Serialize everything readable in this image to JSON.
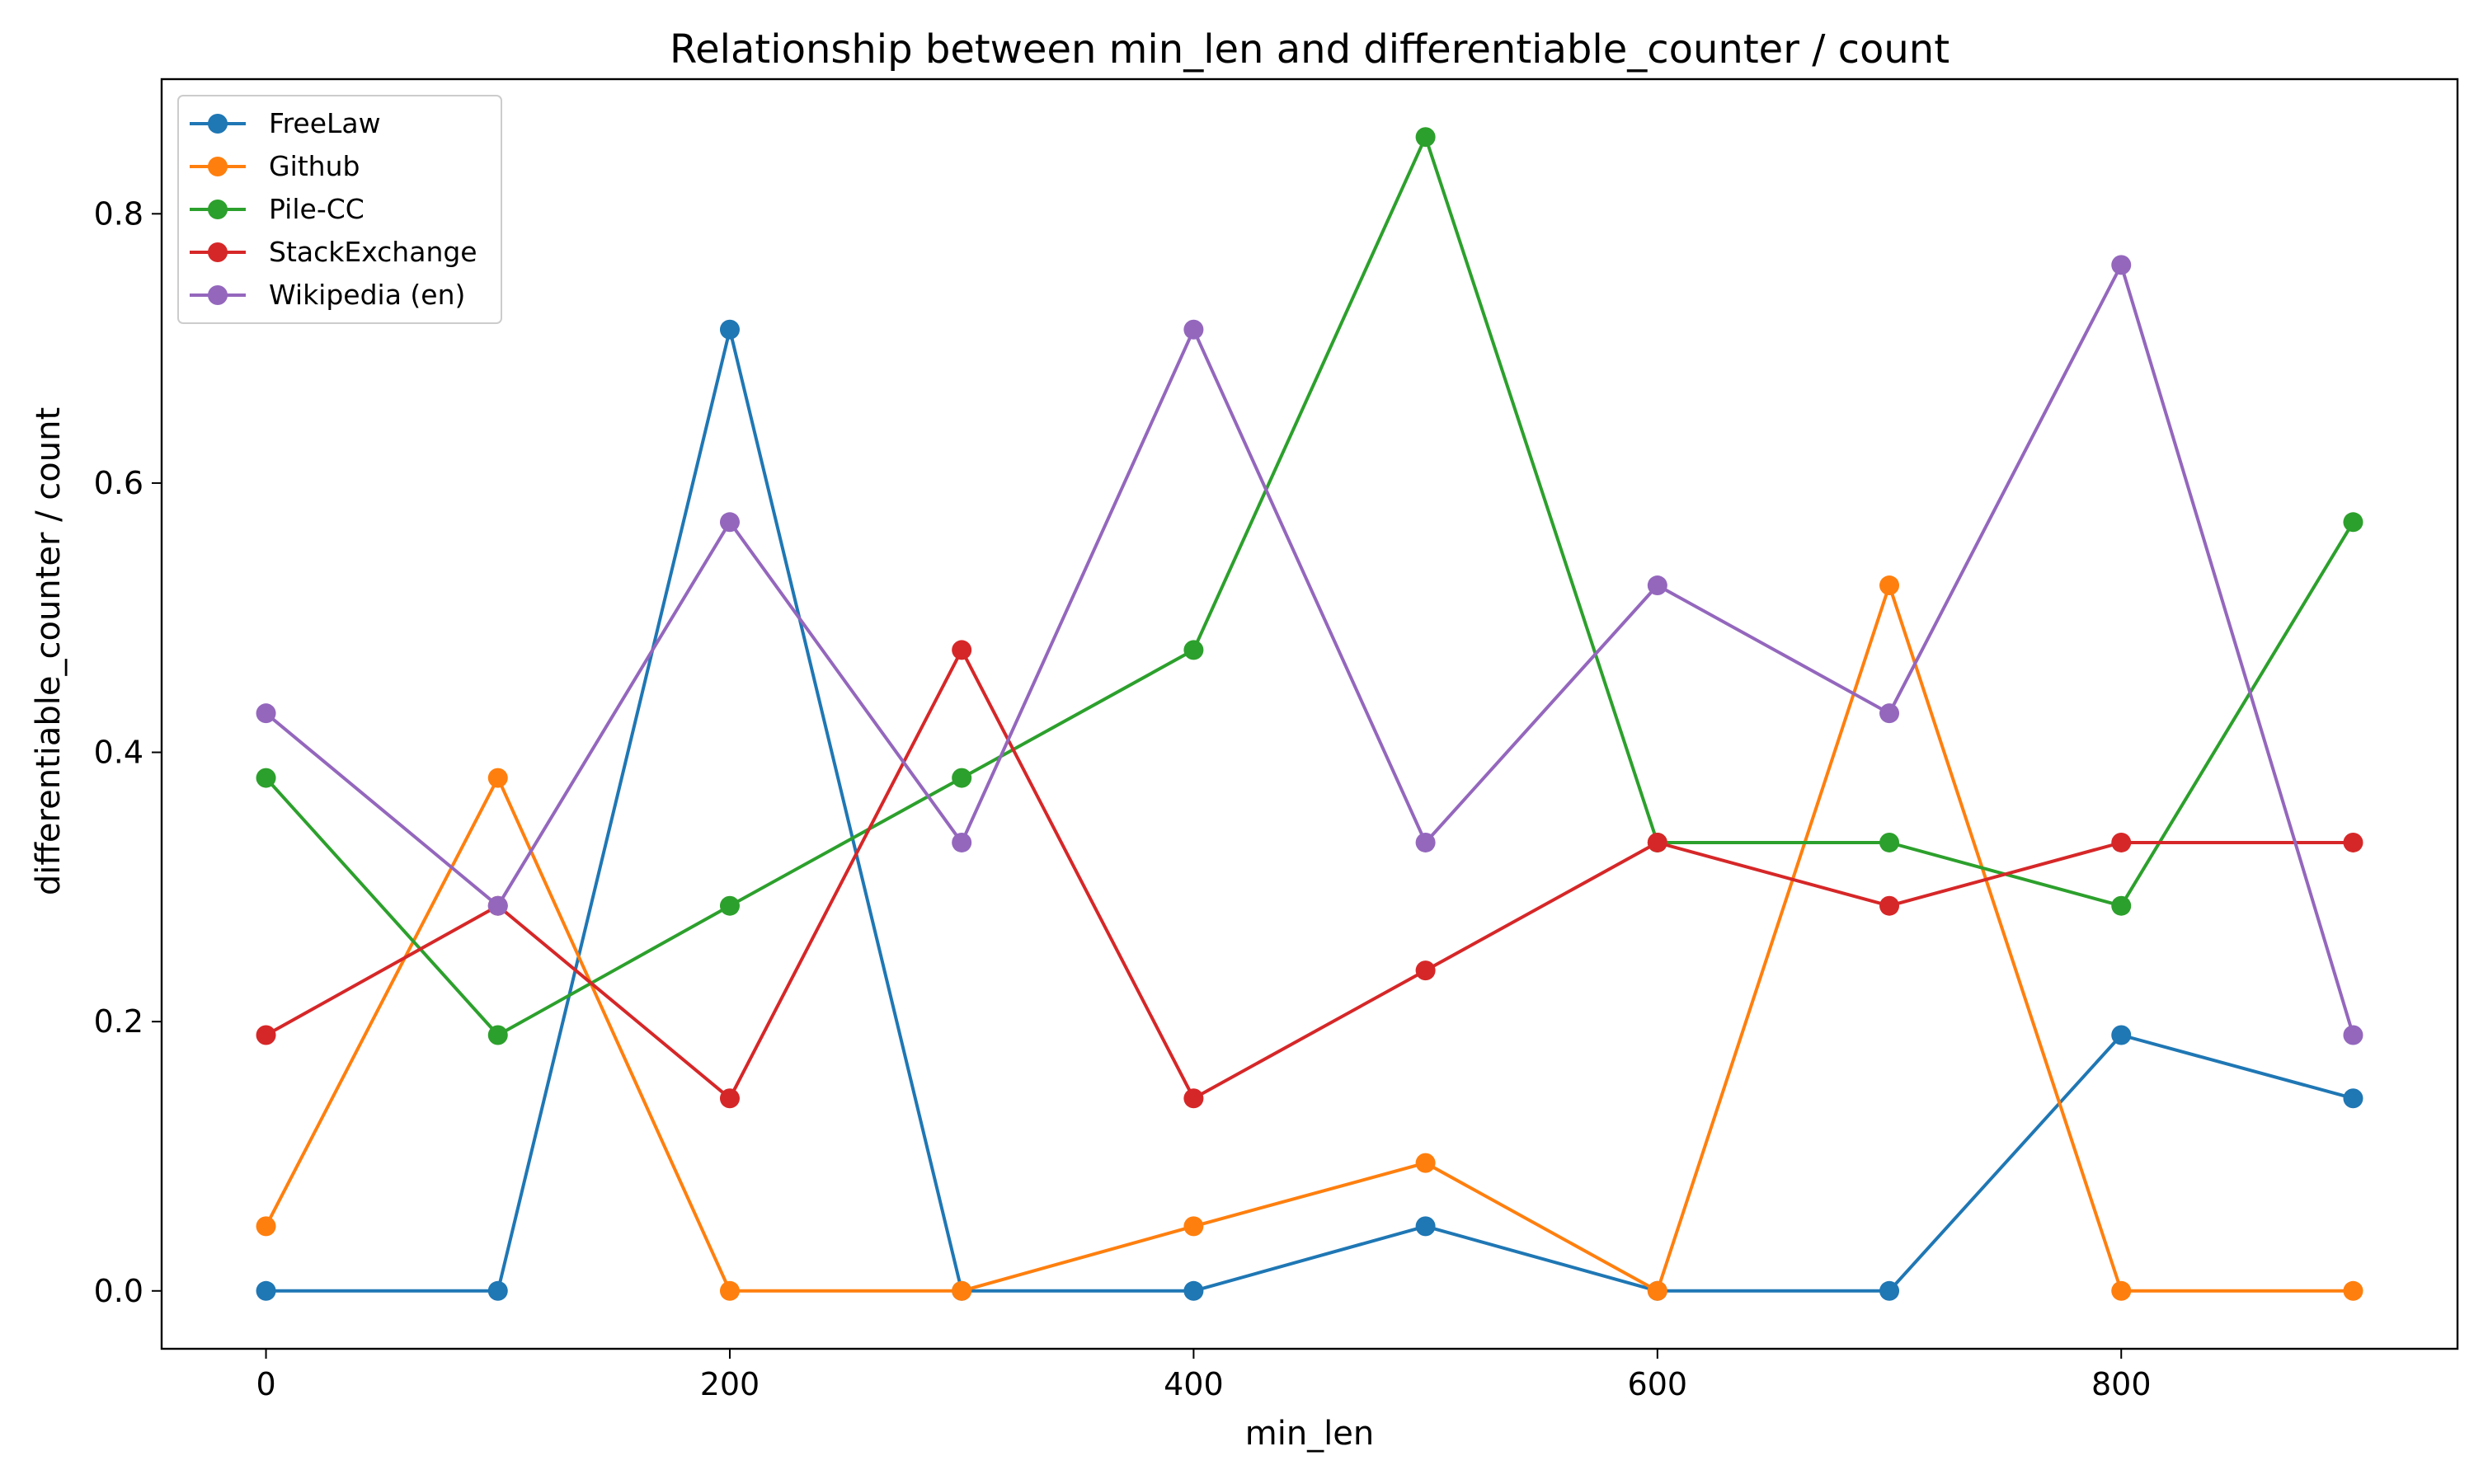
{
  "chart_data": {
    "type": "line",
    "title": "Relationship between min_len and differentiable_counter / count",
    "xlabel": "min_len",
    "ylabel": "differentiable_counter / count",
    "xlim": [
      -45,
      945
    ],
    "ylim": [
      -0.043,
      0.9
    ],
    "xticks": [
      0,
      200,
      400,
      600,
      800
    ],
    "xtick_labels": [
      "0",
      "200",
      "400",
      "600",
      "800"
    ],
    "yticks": [
      0.0,
      0.2,
      0.4,
      0.6,
      0.8
    ],
    "ytick_labels": [
      "0.0",
      "0.2",
      "0.4",
      "0.6",
      "0.8"
    ],
    "grid": false,
    "legend_position": "top-left",
    "x": [
      0,
      100,
      200,
      300,
      400,
      500,
      600,
      700,
      800,
      900
    ],
    "series": [
      {
        "name": "FreeLaw",
        "color": "#1f77b4",
        "values": [
          0.0,
          0.0,
          0.714,
          0.0,
          0.0,
          0.048,
          0.0,
          0.0,
          0.19,
          0.143
        ]
      },
      {
        "name": "Github",
        "color": "#ff7f0e",
        "values": [
          0.048,
          0.381,
          0.0,
          0.0,
          0.048,
          0.095,
          0.0,
          0.524,
          0.0,
          0.0
        ]
      },
      {
        "name": "Pile-CC",
        "color": "#2ca02c",
        "values": [
          0.381,
          0.19,
          0.286,
          0.381,
          0.476,
          0.857,
          0.333,
          0.333,
          0.286,
          0.571
        ]
      },
      {
        "name": "StackExchange",
        "color": "#d62728",
        "values": [
          0.19,
          0.286,
          0.143,
          0.476,
          0.143,
          0.238,
          0.333,
          0.286,
          0.333,
          0.333
        ]
      },
      {
        "name": "Wikipedia (en)",
        "color": "#9467bd",
        "values": [
          0.429,
          0.286,
          0.571,
          0.333,
          0.714,
          0.333,
          0.524,
          0.429,
          0.762,
          0.19
        ]
      }
    ]
  }
}
